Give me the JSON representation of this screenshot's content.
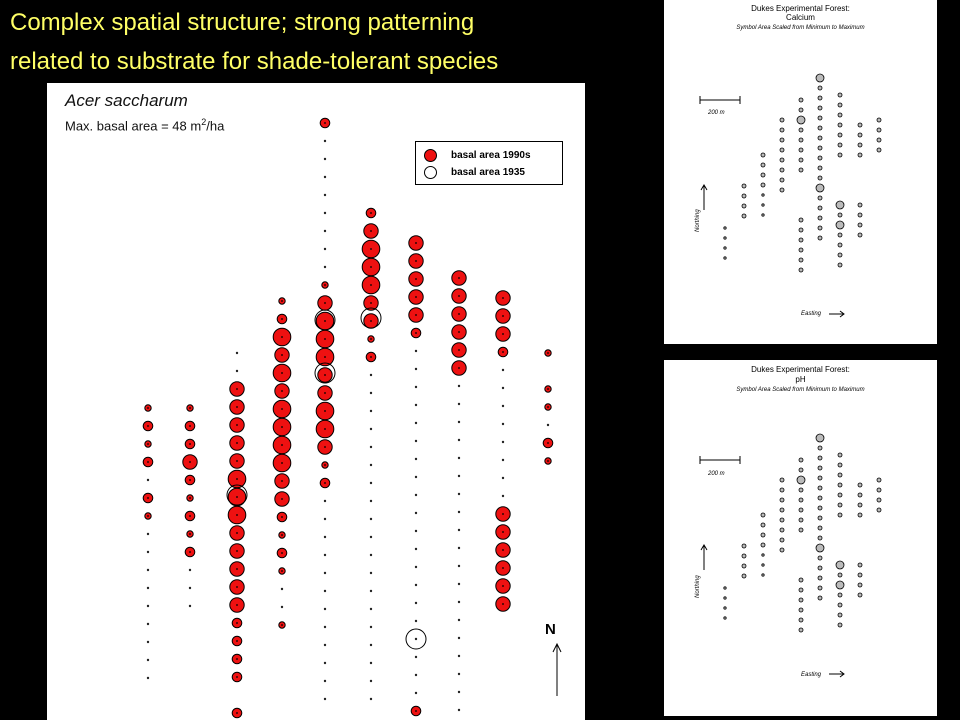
{
  "slide": {
    "title_line1": "Complex spatial structure; strong patterning",
    "title_line2": "related to substrate for shade-tolerant species",
    "title_color": "#ffff66"
  },
  "main_map": {
    "species": "Acer saccharum",
    "max_basal_label": "Max. basal area = 48 m",
    "max_basal_sup": "2",
    "max_basal_unit": "/ha",
    "legend_1990": "basal area 1990s",
    "legend_1935": "basal area 1935",
    "color_1990": "#ee1111",
    "north_label": "N"
  },
  "calcium_map": {
    "title": "Dukes Experimental Forest:",
    "variable": "Calcium",
    "subtitle": "Symbol Area Scaled from Minimum to Maximum",
    "scale_label": "200 m",
    "northing_label": "Northing",
    "easting_label": "Easting"
  },
  "ph_map": {
    "title": "Dukes Experimental Forest:",
    "variable": "pH",
    "subtitle": "Symbol Area Scaled from Minimum to Maximum",
    "scale_label": "200 m",
    "northing_label": "Northing",
    "easting_label": "Easting"
  }
}
